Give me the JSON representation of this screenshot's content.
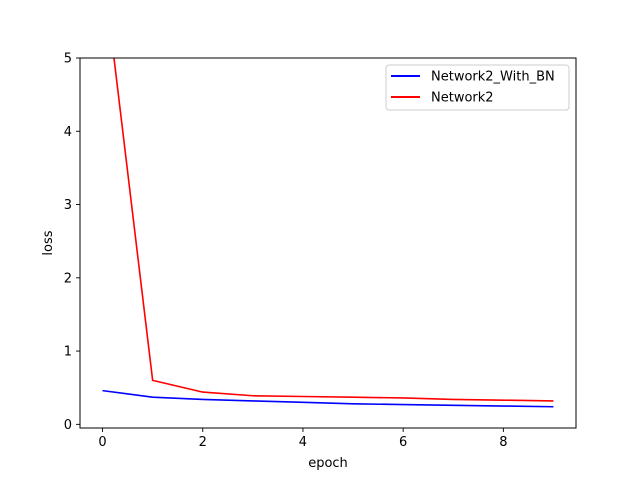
{
  "chart_data": {
    "type": "line",
    "xlabel": "epoch",
    "ylabel": "loss",
    "xlim": [
      -0.45,
      9.45
    ],
    "ylim": [
      -0.05,
      5
    ],
    "x_ticks": [
      0,
      2,
      4,
      6,
      8
    ],
    "y_ticks": [
      0,
      1,
      2,
      3,
      4,
      5
    ],
    "grid": false,
    "legend_position": "top-right",
    "series": [
      {
        "name": "Network2_With_BN",
        "color": "#0000ff",
        "x": [
          0,
          1,
          2,
          3,
          4,
          5,
          6,
          7,
          8,
          9
        ],
        "y": [
          0.46,
          0.37,
          0.34,
          0.32,
          0.3,
          0.28,
          0.27,
          0.26,
          0.25,
          0.24
        ]
      },
      {
        "name": "Network2",
        "color": "#ff0000",
        "x": [
          0,
          1,
          2,
          3,
          4,
          5,
          6,
          7,
          8,
          9
        ],
        "y": [
          6.3,
          0.6,
          0.44,
          0.39,
          0.38,
          0.37,
          0.36,
          0.34,
          0.33,
          0.32
        ]
      }
    ]
  }
}
